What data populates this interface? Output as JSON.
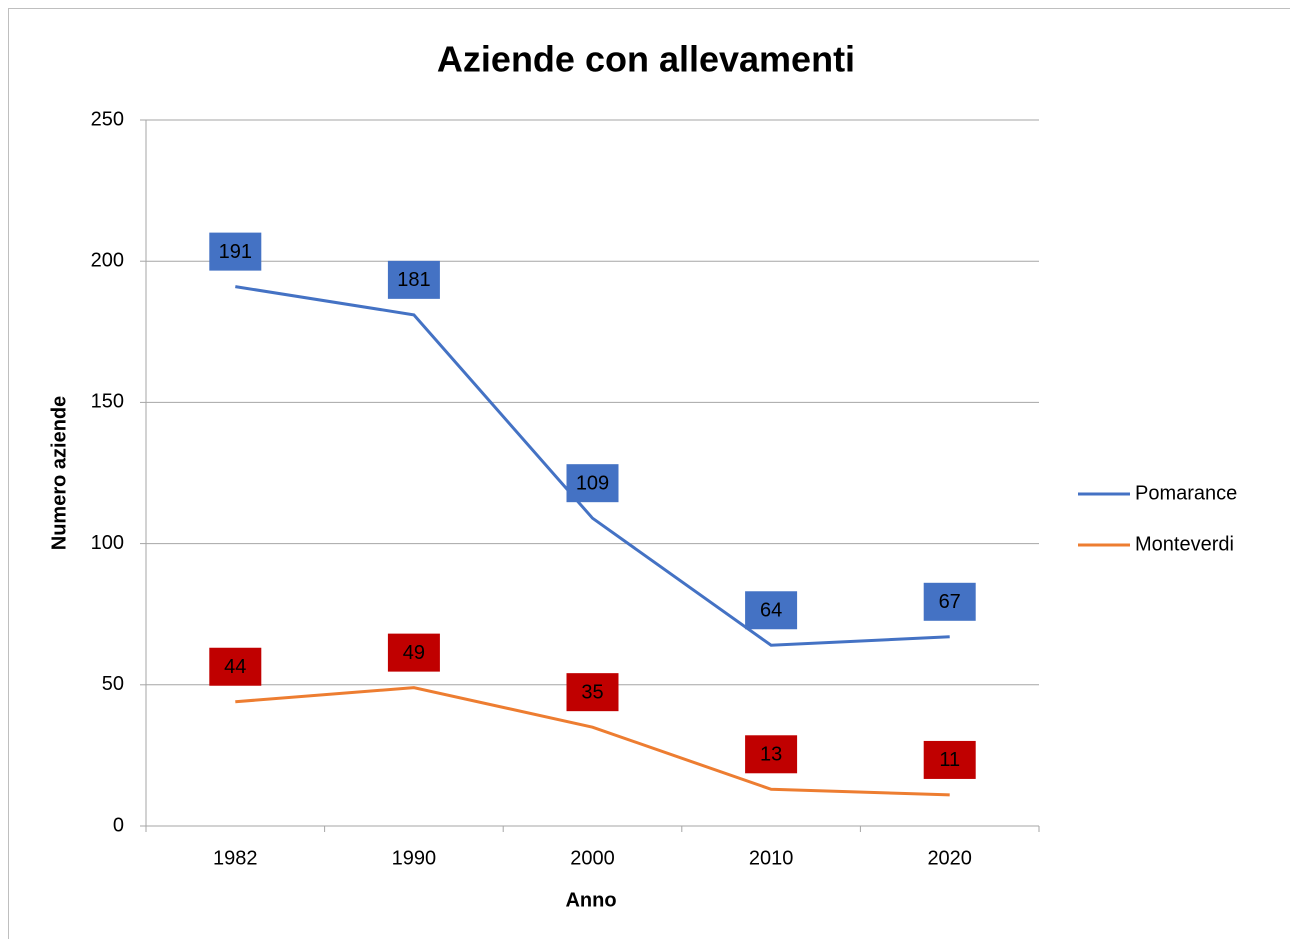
{
  "chart_data": {
    "type": "line",
    "title": "Aziende con allevamenti",
    "x_label": "Anno",
    "y_label": "Numero aziende",
    "categories": [
      "1982",
      "1990",
      "2000",
      "2010",
      "2020"
    ],
    "series": [
      {
        "name": "Pomarance",
        "color": "#4472c4",
        "label_color": "#4472c4",
        "values": [
          191,
          181,
          109,
          64,
          67
        ]
      },
      {
        "name": "Monteverdi",
        "color": "#ed7d31",
        "label_color": "#c00000",
        "values": [
          44,
          49,
          35,
          13,
          11
        ]
      }
    ],
    "ylim": [
      0,
      250
    ],
    "yticks": [
      0,
      50,
      100,
      150,
      200,
      250
    ],
    "grid": true,
    "legend": "right"
  }
}
